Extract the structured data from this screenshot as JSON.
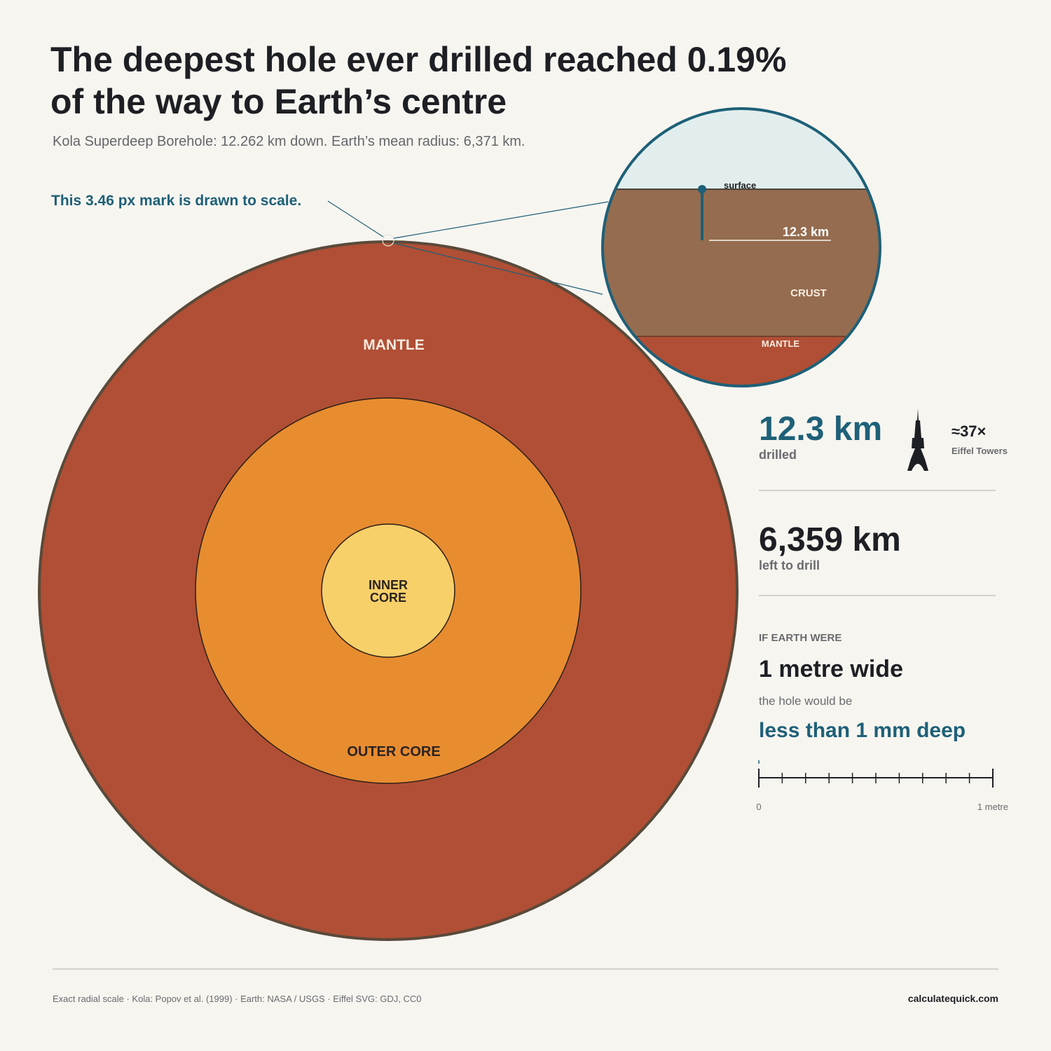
{
  "header": {
    "title": [
      "The deepest hole ever drilled reached 0.19%",
      "of the way to Earth’s centre"
    ],
    "subtitle": "Kola Superdeep Borehole: 12.262 km down. Earth’s mean radius: 6,371 km."
  },
  "globe": {
    "callout": "This 3.46 px mark is drawn to scale.",
    "layers": {
      "mantle": "MANTLE",
      "outer_core": "OUTER CORE",
      "inner_core": [
        "INNER",
        "CORE"
      ]
    }
  },
  "zoom": {
    "surface": "surface",
    "depth": "12.3 km",
    "crust": "CRUST",
    "mantle": "MANTLE"
  },
  "stats": {
    "drilled": {
      "value": "12.3 km",
      "label": "drilled"
    },
    "eiffel": {
      "value": "≈37×",
      "label": "Eiffel Towers"
    },
    "remaining": {
      "value": "6,359 km",
      "label": "left to drill"
    },
    "comparison": {
      "heading": "IF EARTH WERE",
      "size": "1 metre wide",
      "lead": "the hole would be",
      "result": "less than 1 mm deep"
    },
    "scale": {
      "start": "0",
      "end": "1 metre"
    }
  },
  "footer": {
    "source": "Exact radial scale · Kola: Popov et al. (1999) · Earth: NASA / USGS · Eiffel SVG: GDJ, CC0",
    "site": "calculatequick.com"
  }
}
